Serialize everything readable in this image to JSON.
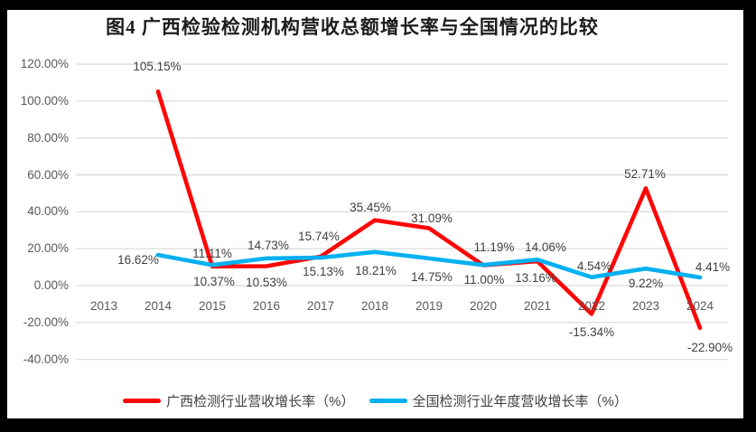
{
  "chart_data": {
    "type": "line",
    "title": "图4 广西检验检测机构营收总额增长率与全国情况的比较",
    "categories": [
      "2013",
      "2014",
      "2015",
      "2016",
      "2017",
      "2018",
      "2019",
      "2020",
      "2021",
      "2022",
      "2023",
      "2024"
    ],
    "xlabel": "",
    "ylabel": "",
    "ylim": [
      -40,
      120
    ],
    "y_tick_values": [
      120,
      100,
      80,
      60,
      40,
      20,
      0,
      -20,
      -40
    ],
    "y_tick_labels": [
      "120.00%",
      "100.00%",
      "80.00%",
      "60.00%",
      "40.00%",
      "20.00%",
      "0.00%",
      "-20.00%",
      "-40.00%"
    ],
    "grid": "horizontal-only",
    "gridline_color": "#d9d9d9",
    "legend_position": "bottom-center",
    "background_color": "#ffffff",
    "frame_color": "#000000",
    "axis_text_color": "#595959",
    "data_label_color": "#404040",
    "series": [
      {
        "name": "广西检测行业营收增长率（%）",
        "color": "#fe0606",
        "values": [
          null,
          105.15,
          10.37,
          10.53,
          15.74,
          35.45,
          31.09,
          11.0,
          13.16,
          -15.34,
          52.71,
          -22.9
        ],
        "labels": [
          "",
          "105.15%",
          "10.37%",
          "10.53%",
          "15.74%",
          "35.45%",
          "31.09%",
          "11.00%",
          "13.16%",
          "-15.34%",
          "52.71%",
          "-22.90%"
        ],
        "label_offsets": [
          [
            0,
            0
          ],
          [
            -1,
            -27
          ],
          [
            2,
            17
          ],
          [
            0,
            18
          ],
          [
            -2,
            -22
          ],
          [
            -5,
            -14
          ],
          [
            3,
            -11
          ],
          [
            1,
            16
          ],
          [
            -2,
            19
          ],
          [
            0,
            21
          ],
          [
            -1,
            -15
          ],
          [
            11,
            22
          ]
        ]
      },
      {
        "name": "全国检测行业年度营收增长率（%）",
        "color": "#00b0f0",
        "values": [
          null,
          16.62,
          11.11,
          14.73,
          15.13,
          18.21,
          14.75,
          11.19,
          14.06,
          4.54,
          9.22,
          4.41
        ],
        "labels": [
          "",
          "16.62%",
          "11.11%",
          "14.73%",
          "15.13%",
          "18.21%",
          "14.75%",
          "11.19%",
          "14.06%",
          "4.54%",
          "9.22%",
          "4.41%"
        ],
        "label_offsets": [
          [
            0,
            0
          ],
          [
            -22,
            6
          ],
          [
            0,
            -12
          ],
          [
            2,
            -14
          ],
          [
            3,
            16
          ],
          [
            1,
            21
          ],
          [
            3,
            21
          ],
          [
            12,
            -19
          ],
          [
            9,
            -13
          ],
          [
            3,
            -12
          ],
          [
            0,
            17
          ],
          [
            14,
            -11
          ]
        ]
      }
    ]
  }
}
